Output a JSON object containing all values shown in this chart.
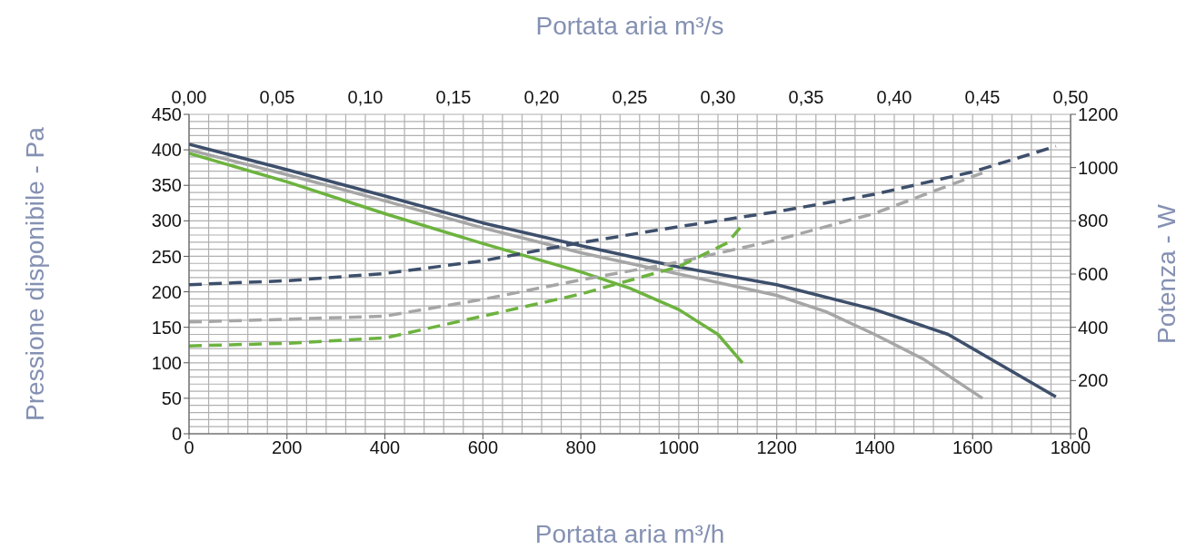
{
  "chart_data": {
    "type": "line",
    "xlabel": "Portata aria m³/h",
    "x2label": "Portata aria m³/s",
    "ylabel": "Pressione disponibile - Pa",
    "y2label": "Potenza - W",
    "xlim": [
      0,
      1800
    ],
    "xticks": [
      0,
      200,
      400,
      600,
      800,
      1000,
      1200,
      1400,
      1600,
      1800
    ],
    "x2lim": [
      0,
      0.5
    ],
    "x2ticks": [
      {
        "value": 0,
        "label": "0,00"
      },
      {
        "value": 0.05,
        "label": "0,05"
      },
      {
        "value": 0.1,
        "label": "0,10"
      },
      {
        "value": 0.15,
        "label": "0,15"
      },
      {
        "value": 0.2,
        "label": "0,20"
      },
      {
        "value": 0.25,
        "label": "0,25"
      },
      {
        "value": 0.3,
        "label": "0,30"
      },
      {
        "value": 0.35,
        "label": "0,35"
      },
      {
        "value": 0.4,
        "label": "0,40"
      },
      {
        "value": 0.45,
        "label": "0,45"
      },
      {
        "value": 0.5,
        "label": "0,50"
      }
    ],
    "ylim": [
      0,
      450
    ],
    "yticks": [
      0,
      50,
      100,
      150,
      200,
      250,
      300,
      350,
      400,
      450
    ],
    "y2lim": [
      0,
      1200
    ],
    "y2ticks": [
      0,
      200,
      400,
      600,
      800,
      1000,
      1200
    ],
    "grid": true,
    "marker": "none",
    "series": [
      {
        "color": "#3d4f6b",
        "line_style": "solid",
        "x": [
          0,
          200,
          400,
          600,
          800,
          1000,
          1200,
          1400,
          1550,
          1770
        ],
        "values": [
          408,
          372,
          335,
          297,
          265,
          235,
          210,
          175,
          140,
          52
        ]
      },
      {
        "color": "#a6a6a6",
        "line_style": "solid",
        "x": [
          0,
          200,
          400,
          600,
          800,
          1000,
          1200,
          1300,
          1400,
          1500,
          1620
        ],
        "values": [
          400,
          365,
          328,
          290,
          255,
          225,
          195,
          172,
          140,
          105,
          50
        ]
      },
      {
        "color": "#6db33f",
        "line_style": "solid",
        "x": [
          0,
          200,
          400,
          600,
          800,
          900,
          1000,
          1080,
          1130
        ],
        "values": [
          395,
          355,
          310,
          268,
          228,
          205,
          175,
          140,
          100
        ]
      },
      {
        "color": "#3d4f6b",
        "line_style": "dashed",
        "axis": "y2",
        "x": [
          0,
          200,
          400,
          600,
          800,
          1000,
          1200,
          1400,
          1600,
          1770
        ],
        "values": [
          560,
          575,
          602,
          650,
          718,
          778,
          834,
          900,
          984,
          1080
        ]
      },
      {
        "color": "#a6a6a6",
        "line_style": "dashed",
        "axis": "y2",
        "x": [
          0,
          200,
          400,
          600,
          800,
          1000,
          1200,
          1400,
          1620
        ],
        "values": [
          420,
          430,
          442,
          505,
          578,
          645,
          728,
          828,
          980
        ]
      },
      {
        "color": "#6db33f",
        "line_style": "dashed",
        "axis": "y2",
        "x": [
          0,
          200,
          400,
          600,
          800,
          1000,
          1100,
          1130
        ],
        "values": [
          330,
          340,
          360,
          442,
          525,
          628,
          718,
          785
        ]
      }
    ]
  }
}
